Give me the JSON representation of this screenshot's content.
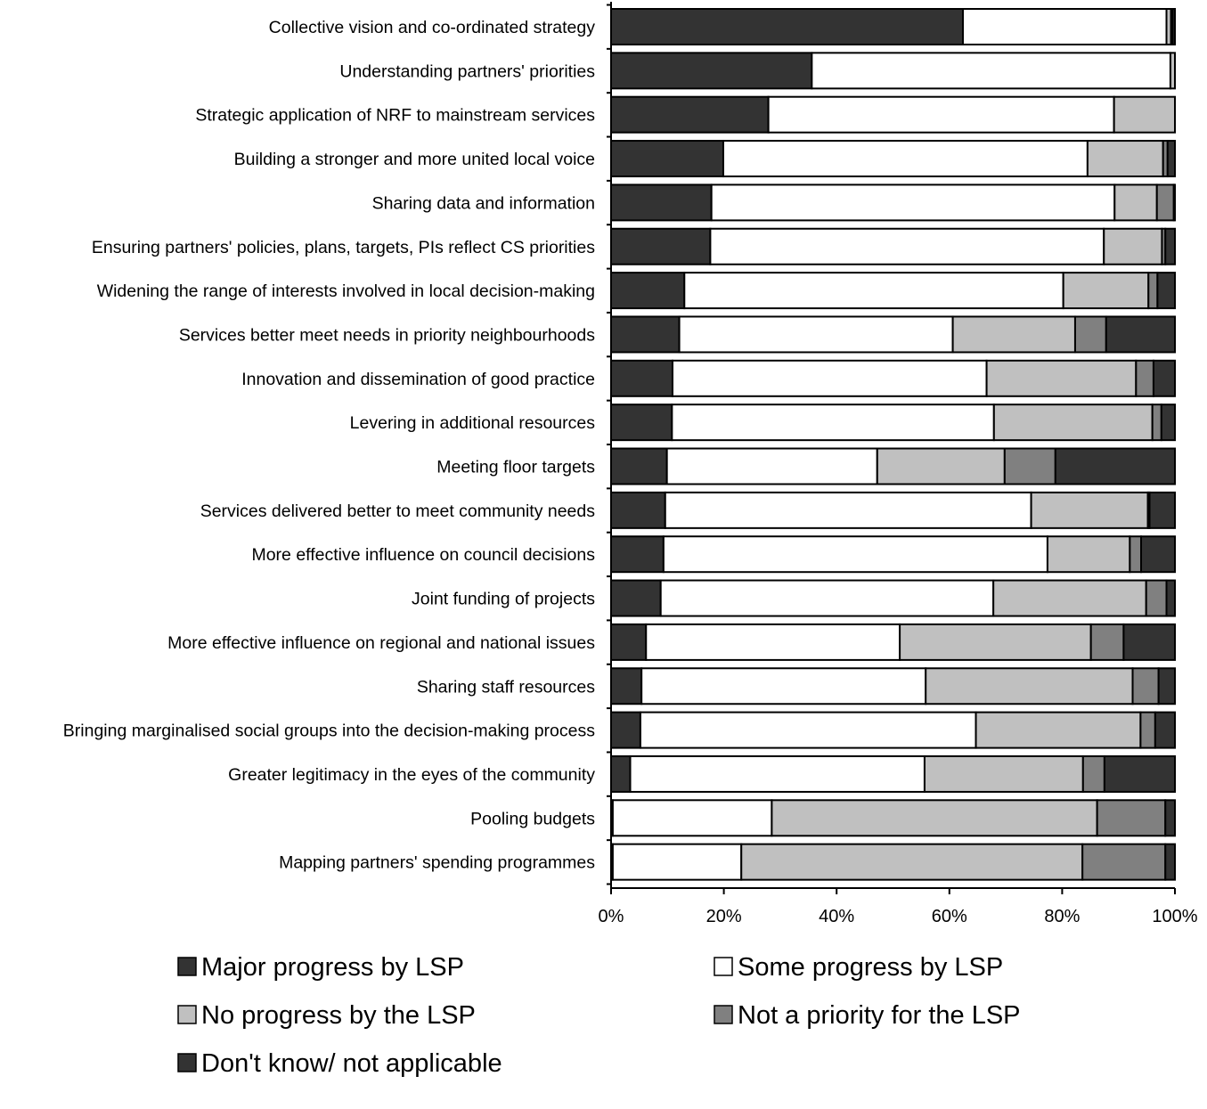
{
  "chart_data": {
    "type": "bar",
    "orientation": "horizontal",
    "stacked": "100%",
    "title": "",
    "xlabel": "",
    "ylabel": "",
    "xlim": [
      0,
      100
    ],
    "x_ticks": [
      "0%",
      "20%",
      "40%",
      "60%",
      "80%",
      "100%"
    ],
    "grid": false,
    "legend_position": "bottom",
    "categories": [
      "Collective vision and co-ordinated strategy",
      "Understanding partners' priorities",
      "Strategic application of NRF to mainstream services",
      "Building a stronger and more united local voice",
      "Sharing data and information",
      "Ensuring partners' policies, plans, targets, PIs reflect CS priorities",
      "Widening the range of interests involved in local decision-making",
      "Services better meet needs in priority neighbourhoods",
      "Innovation and dissemination of good practice",
      "Levering in additional resources",
      "Meeting floor targets",
      "Services delivered better to meet community needs",
      "More effective influence on council decisions",
      "Joint funding of projects",
      "More effective influence on regional and national issues",
      "Sharing staff resources",
      "Bringing marginalised social groups into the decision-making process",
      "Greater legitimacy in the eyes of the community",
      "Pooling budgets",
      "Mapping partners' spending programmes"
    ],
    "series": [
      {
        "name": "Major progress by LSP",
        "color": "#333333",
        "values": [
          62.4,
          35.6,
          27.9,
          19.9,
          17.8,
          17.6,
          13.0,
          12.1,
          10.9,
          10.8,
          9.9,
          9.6,
          9.3,
          8.8,
          6.2,
          5.4,
          5.2,
          3.4,
          0.3,
          0.3
        ]
      },
      {
        "name": "Some progress by LSP",
        "color": "#ffffff",
        "values": [
          36.1,
          63.6,
          61.3,
          64.6,
          71.5,
          69.8,
          67.2,
          48.5,
          55.7,
          57.1,
          37.3,
          64.9,
          68.1,
          59.0,
          45.0,
          50.4,
          59.5,
          52.2,
          28.2,
          22.8
        ]
      },
      {
        "name": "No progress by the LSP",
        "color": "#c0c0c0",
        "values": [
          0.8,
          0.8,
          10.8,
          13.4,
          7.5,
          10.3,
          15.1,
          21.7,
          26.5,
          28.1,
          22.6,
          20.7,
          14.6,
          27.1,
          33.9,
          36.7,
          29.2,
          28.1,
          57.7,
          60.5
        ]
      },
      {
        "name": "Not a priority for the LSP",
        "color": "#808080",
        "values": [
          0.3,
          0.0,
          0.0,
          0.8,
          3.0,
          0.6,
          1.6,
          5.5,
          3.1,
          1.6,
          9.0,
          0.3,
          2.0,
          3.6,
          5.8,
          4.6,
          2.6,
          3.8,
          12.1,
          14.7
        ]
      },
      {
        "name": "Don't know/ not applicable",
        "color": "#333333",
        "values": [
          0.4,
          0.0,
          0.0,
          1.3,
          0.2,
          1.7,
          3.1,
          12.2,
          3.8,
          2.4,
          21.2,
          4.5,
          6.0,
          1.5,
          9.1,
          2.9,
          3.5,
          12.5,
          1.7,
          1.7
        ]
      }
    ]
  }
}
